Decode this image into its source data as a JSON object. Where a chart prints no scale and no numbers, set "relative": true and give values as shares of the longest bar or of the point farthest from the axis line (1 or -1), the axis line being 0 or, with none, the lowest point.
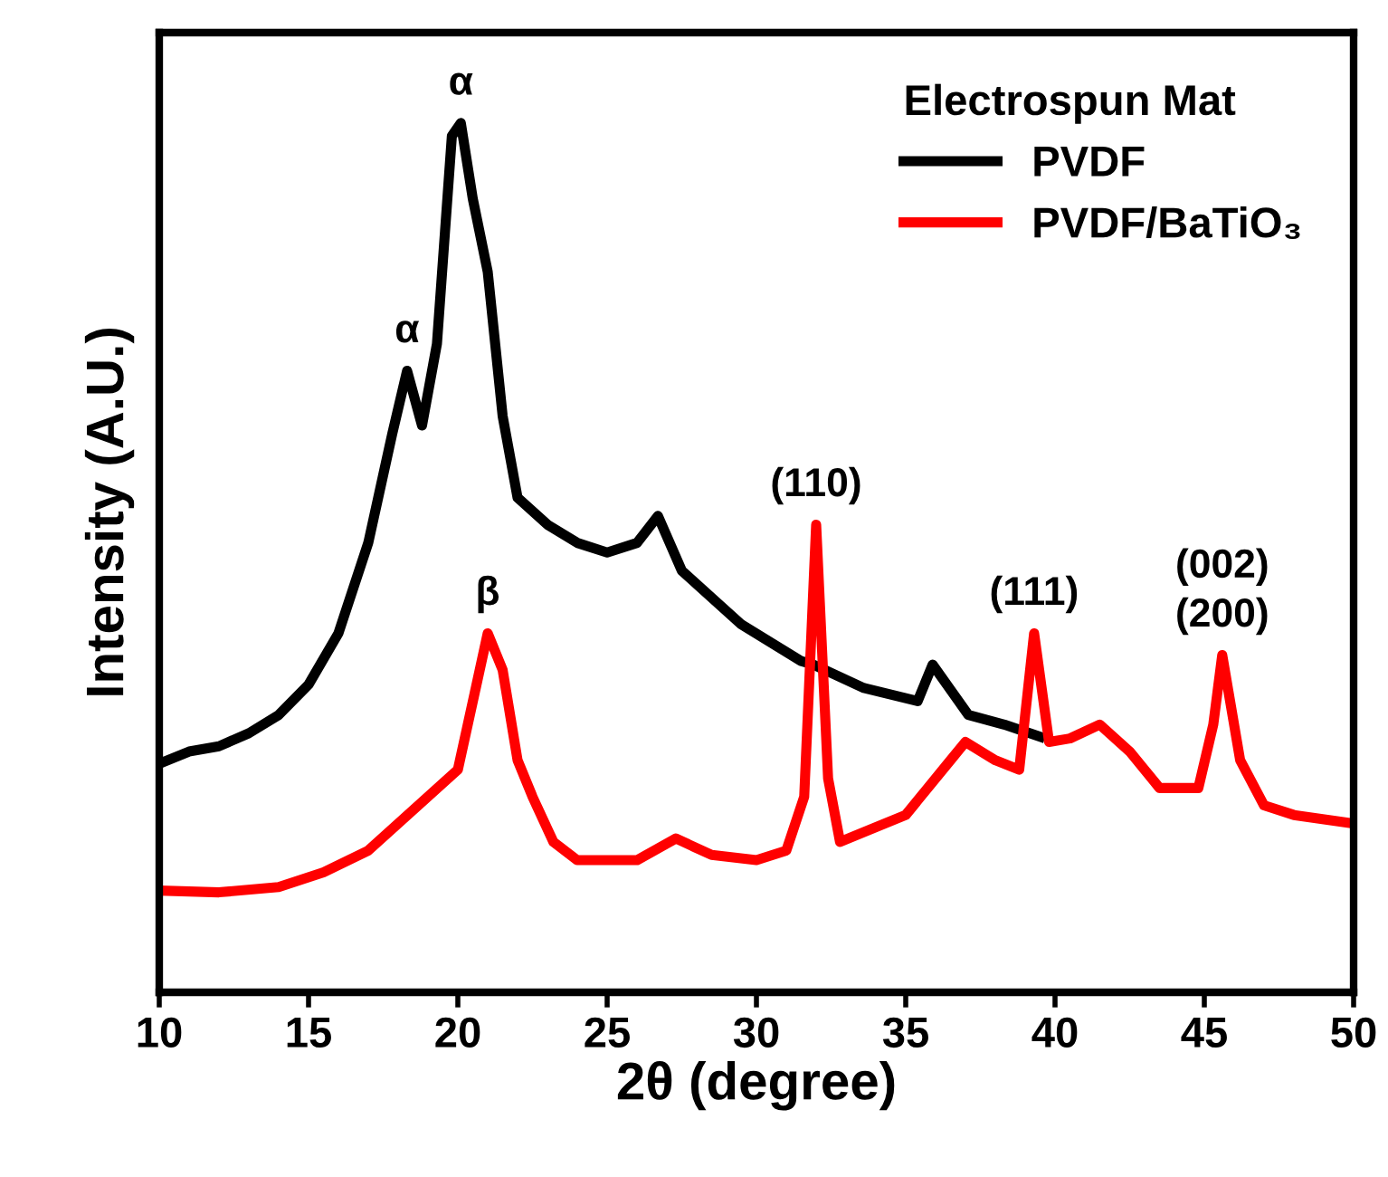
{
  "chart_data": {
    "type": "line",
    "relative": true,
    "xlabel": "2θ (degree)",
    "ylabel": "Intensity (A.U.)",
    "legend_title": "Electrospun Mat",
    "legend": "top right",
    "grid": false,
    "tick_labels": "x",
    "xlim": [
      10,
      50
    ],
    "xticks": [
      10,
      15,
      20,
      25,
      30,
      35,
      40,
      45,
      50
    ],
    "series": [
      {
        "name": "PVDF",
        "color": "#000000",
        "x": [
          10,
          11,
          12,
          13,
          14,
          15,
          16,
          17,
          17.8,
          18.3,
          18.8,
          19.3,
          19.8,
          20.1,
          20.5,
          21,
          21.5,
          22,
          23,
          24,
          25,
          26,
          26.7,
          27.5,
          28.5,
          29.5,
          30.5,
          31.5,
          31.9,
          33.6,
          35.4,
          35.9,
          37.1,
          38.3,
          39.5
        ],
        "values": [
          0.263,
          0.277,
          0.283,
          0.298,
          0.319,
          0.354,
          0.413,
          0.517,
          0.642,
          0.715,
          0.652,
          0.746,
          0.985,
          1.0,
          0.913,
          0.829,
          0.663,
          0.569,
          0.538,
          0.517,
          0.506,
          0.517,
          0.548,
          0.485,
          0.454,
          0.423,
          0.402,
          0.381,
          0.377,
          0.35,
          0.335,
          0.377,
          0.319,
          0.308,
          0.294
        ]
      },
      {
        "name": "PVDF/BaTiO₃",
        "color": "#ff0000",
        "x": [
          10,
          12,
          14,
          15.5,
          17,
          18,
          19,
          20,
          20.6,
          21,
          21.5,
          22,
          22.5,
          23.2,
          24,
          26,
          27.3,
          28.5,
          30,
          31,
          31.6,
          32,
          32.4,
          32.8,
          33.5,
          35,
          36.5,
          37,
          38,
          38.8,
          39.3,
          39.8,
          40.5,
          41.5,
          42.5,
          43.5,
          44.8,
          45.3,
          45.6,
          46.2,
          47,
          48,
          50
        ],
        "values": [
          0.117,
          0.115,
          0.121,
          0.138,
          0.163,
          0.194,
          0.225,
          0.256,
          0.35,
          0.413,
          0.371,
          0.267,
          0.225,
          0.173,
          0.152,
          0.152,
          0.177,
          0.158,
          0.152,
          0.163,
          0.225,
          0.538,
          0.246,
          0.173,
          0.183,
          0.204,
          0.267,
          0.288,
          0.267,
          0.256,
          0.413,
          0.288,
          0.292,
          0.308,
          0.277,
          0.235,
          0.235,
          0.308,
          0.388,
          0.267,
          0.215,
          0.204,
          0.194
        ]
      }
    ],
    "annotations": [
      {
        "text": "α",
        "x": 18.3,
        "y": 0.715
      },
      {
        "text": "α",
        "x": 20.1,
        "y": 1.0
      },
      {
        "text": "β",
        "x": 21.0,
        "y": 0.413
      },
      {
        "text": "(110)",
        "x": 32.0,
        "y": 0.538
      },
      {
        "text": "(111)",
        "x": 39.3,
        "y": 0.413
      },
      {
        "text": "(002)\n(200)",
        "x": 45.6,
        "y": 0.388
      }
    ]
  }
}
